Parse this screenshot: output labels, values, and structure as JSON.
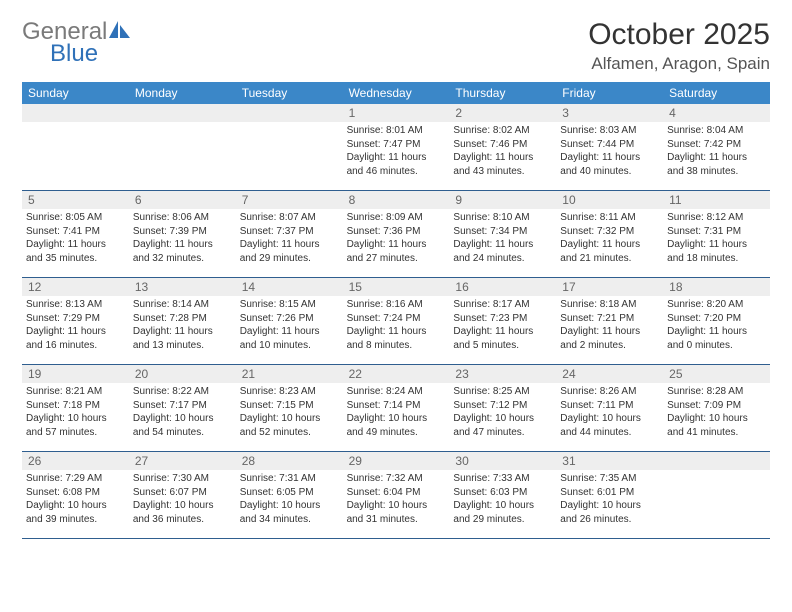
{
  "logo": {
    "text1": "General",
    "text2": "Blue"
  },
  "title": "October 2025",
  "location": "Alfamen, Aragon, Spain",
  "colors": {
    "header_bg": "#3b87c8",
    "header_text": "#ffffff",
    "daynum_bg": "#eeeeee",
    "daynum_text": "#666666",
    "row_border": "#2f5e8f",
    "logo_gray": "#7a7a7a",
    "logo_blue": "#2f71b8"
  },
  "dow": [
    "Sunday",
    "Monday",
    "Tuesday",
    "Wednesday",
    "Thursday",
    "Friday",
    "Saturday"
  ],
  "weeks": [
    [
      null,
      null,
      null,
      {
        "n": "1",
        "sr": "8:01 AM",
        "ss": "7:47 PM",
        "dh": "11",
        "dm": "46"
      },
      {
        "n": "2",
        "sr": "8:02 AM",
        "ss": "7:46 PM",
        "dh": "11",
        "dm": "43"
      },
      {
        "n": "3",
        "sr": "8:03 AM",
        "ss": "7:44 PM",
        "dh": "11",
        "dm": "40"
      },
      {
        "n": "4",
        "sr": "8:04 AM",
        "ss": "7:42 PM",
        "dh": "11",
        "dm": "38"
      }
    ],
    [
      {
        "n": "5",
        "sr": "8:05 AM",
        "ss": "7:41 PM",
        "dh": "11",
        "dm": "35"
      },
      {
        "n": "6",
        "sr": "8:06 AM",
        "ss": "7:39 PM",
        "dh": "11",
        "dm": "32"
      },
      {
        "n": "7",
        "sr": "8:07 AM",
        "ss": "7:37 PM",
        "dh": "11",
        "dm": "29"
      },
      {
        "n": "8",
        "sr": "8:09 AM",
        "ss": "7:36 PM",
        "dh": "11",
        "dm": "27"
      },
      {
        "n": "9",
        "sr": "8:10 AM",
        "ss": "7:34 PM",
        "dh": "11",
        "dm": "24"
      },
      {
        "n": "10",
        "sr": "8:11 AM",
        "ss": "7:32 PM",
        "dh": "11",
        "dm": "21"
      },
      {
        "n": "11",
        "sr": "8:12 AM",
        "ss": "7:31 PM",
        "dh": "11",
        "dm": "18"
      }
    ],
    [
      {
        "n": "12",
        "sr": "8:13 AM",
        "ss": "7:29 PM",
        "dh": "11",
        "dm": "16"
      },
      {
        "n": "13",
        "sr": "8:14 AM",
        "ss": "7:28 PM",
        "dh": "11",
        "dm": "13"
      },
      {
        "n": "14",
        "sr": "8:15 AM",
        "ss": "7:26 PM",
        "dh": "11",
        "dm": "10"
      },
      {
        "n": "15",
        "sr": "8:16 AM",
        "ss": "7:24 PM",
        "dh": "11",
        "dm": "8"
      },
      {
        "n": "16",
        "sr": "8:17 AM",
        "ss": "7:23 PM",
        "dh": "11",
        "dm": "5"
      },
      {
        "n": "17",
        "sr": "8:18 AM",
        "ss": "7:21 PM",
        "dh": "11",
        "dm": "2"
      },
      {
        "n": "18",
        "sr": "8:20 AM",
        "ss": "7:20 PM",
        "dh": "11",
        "dm": "0"
      }
    ],
    [
      {
        "n": "19",
        "sr": "8:21 AM",
        "ss": "7:18 PM",
        "dh": "10",
        "dm": "57"
      },
      {
        "n": "20",
        "sr": "8:22 AM",
        "ss": "7:17 PM",
        "dh": "10",
        "dm": "54"
      },
      {
        "n": "21",
        "sr": "8:23 AM",
        "ss": "7:15 PM",
        "dh": "10",
        "dm": "52"
      },
      {
        "n": "22",
        "sr": "8:24 AM",
        "ss": "7:14 PM",
        "dh": "10",
        "dm": "49"
      },
      {
        "n": "23",
        "sr": "8:25 AM",
        "ss": "7:12 PM",
        "dh": "10",
        "dm": "47"
      },
      {
        "n": "24",
        "sr": "8:26 AM",
        "ss": "7:11 PM",
        "dh": "10",
        "dm": "44"
      },
      {
        "n": "25",
        "sr": "8:28 AM",
        "ss": "7:09 PM",
        "dh": "10",
        "dm": "41"
      }
    ],
    [
      {
        "n": "26",
        "sr": "7:29 AM",
        "ss": "6:08 PM",
        "dh": "10",
        "dm": "39"
      },
      {
        "n": "27",
        "sr": "7:30 AM",
        "ss": "6:07 PM",
        "dh": "10",
        "dm": "36"
      },
      {
        "n": "28",
        "sr": "7:31 AM",
        "ss": "6:05 PM",
        "dh": "10",
        "dm": "34"
      },
      {
        "n": "29",
        "sr": "7:32 AM",
        "ss": "6:04 PM",
        "dh": "10",
        "dm": "31"
      },
      {
        "n": "30",
        "sr": "7:33 AM",
        "ss": "6:03 PM",
        "dh": "10",
        "dm": "29"
      },
      {
        "n": "31",
        "sr": "7:35 AM",
        "ss": "6:01 PM",
        "dh": "10",
        "dm": "26"
      },
      null
    ]
  ]
}
